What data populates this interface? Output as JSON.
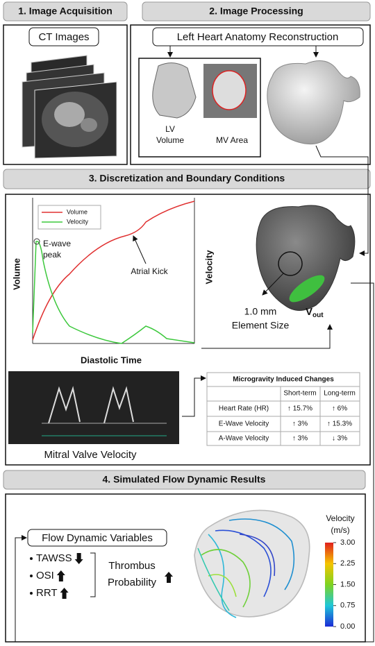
{
  "sections": [
    "1. Image Acquisition",
    "2. Image Processing",
    "3. Discretization and Boundary Conditions",
    "4. Simulated Flow Dynamic Results"
  ],
  "acquisition": {
    "label": "CT Images"
  },
  "processing": {
    "label": "Left Heart Anatomy Reconstruction",
    "lv_label": [
      "LV",
      "Volume"
    ],
    "mv_label": "MV Area"
  },
  "discretization": {
    "chart": {
      "legend": [
        "Volume",
        "Velocity"
      ],
      "y_label": "Volume",
      "y2_label": "Velocity",
      "x_label": "Diastolic Time",
      "annotations": [
        "E-wave",
        "peak",
        "Atrial Kick"
      ]
    },
    "mesh": {
      "element_size": [
        "1.0 mm",
        "Element Size"
      ],
      "outlet": {
        "main": "V",
        "sub": "out"
      }
    },
    "doppler_label": "Mitral Valve Velocity",
    "table": {
      "title": "Microgravity Induced Changes",
      "columns": [
        "Short-term",
        "Long-term"
      ],
      "rows": [
        [
          "Heart Rate (HR)",
          "↑ 15.7%",
          "↑ 6%"
        ],
        [
          "E-Wave Velocity",
          "↑ 3%",
          "↑ 15.3%"
        ],
        [
          "A-Wave Velocity",
          "↑ 3%",
          "↓ 3%"
        ]
      ]
    }
  },
  "results": {
    "variables_label": "Flow Dynamic Variables",
    "variables": [
      "TAWSS",
      "OSI",
      "RRT"
    ],
    "outcome": [
      "Thrombus",
      "Probability"
    ],
    "colorbar": {
      "title": [
        "Velocity",
        "(m/s)"
      ],
      "lim": [
        0,
        3
      ],
      "ticks": [
        {
          "value": 3,
          "label": "3.00"
        },
        {
          "value": 2.25,
          "label": "2.25"
        },
        {
          "value": 1.5,
          "label": "1.50"
        },
        {
          "value": 0.75,
          "label": "0.75"
        },
        {
          "value": 0,
          "label": "0.00"
        }
      ]
    }
  }
}
